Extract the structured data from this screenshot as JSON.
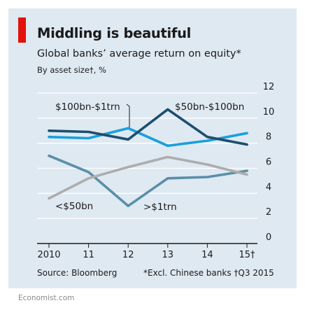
{
  "header": {
    "title": "Middling is beautiful",
    "subtitle": "Global banks’ average return on equity*",
    "unit": "By asset size†, %"
  },
  "footer": {
    "source": "Source: Bloomberg",
    "footnote": "*Excl. Chinese banks  †Q3 2015",
    "brand": "Economist.com"
  },
  "colors": {
    "background": "#dfe9f2",
    "accent": "#e3120b"
  },
  "chart_data": {
    "type": "line",
    "x": [
      2010,
      2011,
      2012,
      2013,
      2014,
      2015
    ],
    "x_tick_labels": [
      "2010",
      "11",
      "12",
      "13",
      "14",
      "15†"
    ],
    "ylim": [
      0,
      12
    ],
    "y_ticks": [
      0,
      2,
      4,
      6,
      8,
      10,
      12
    ],
    "y_axis_side": "right",
    "grid": true,
    "series": [
      {
        "name": "<$50bn",
        "color": "#5b8fa8",
        "values": [
          7.0,
          5.7,
          3.0,
          5.2,
          5.3,
          5.8
        ]
      },
      {
        "name": ">$1trn",
        "color": "#adadad",
        "values": [
          3.6,
          5.2,
          6.1,
          6.9,
          6.3,
          5.5
        ]
      },
      {
        "name": "$100bn-$1trn",
        "color": "#1aa0dc",
        "values": [
          8.5,
          8.4,
          9.2,
          7.8,
          8.2,
          8.8
        ]
      },
      {
        "name": "$50bn-$100bn",
        "color": "#1c4f6e",
        "values": [
          9.0,
          8.9,
          8.3,
          10.7,
          8.5,
          7.9
        ]
      }
    ]
  }
}
